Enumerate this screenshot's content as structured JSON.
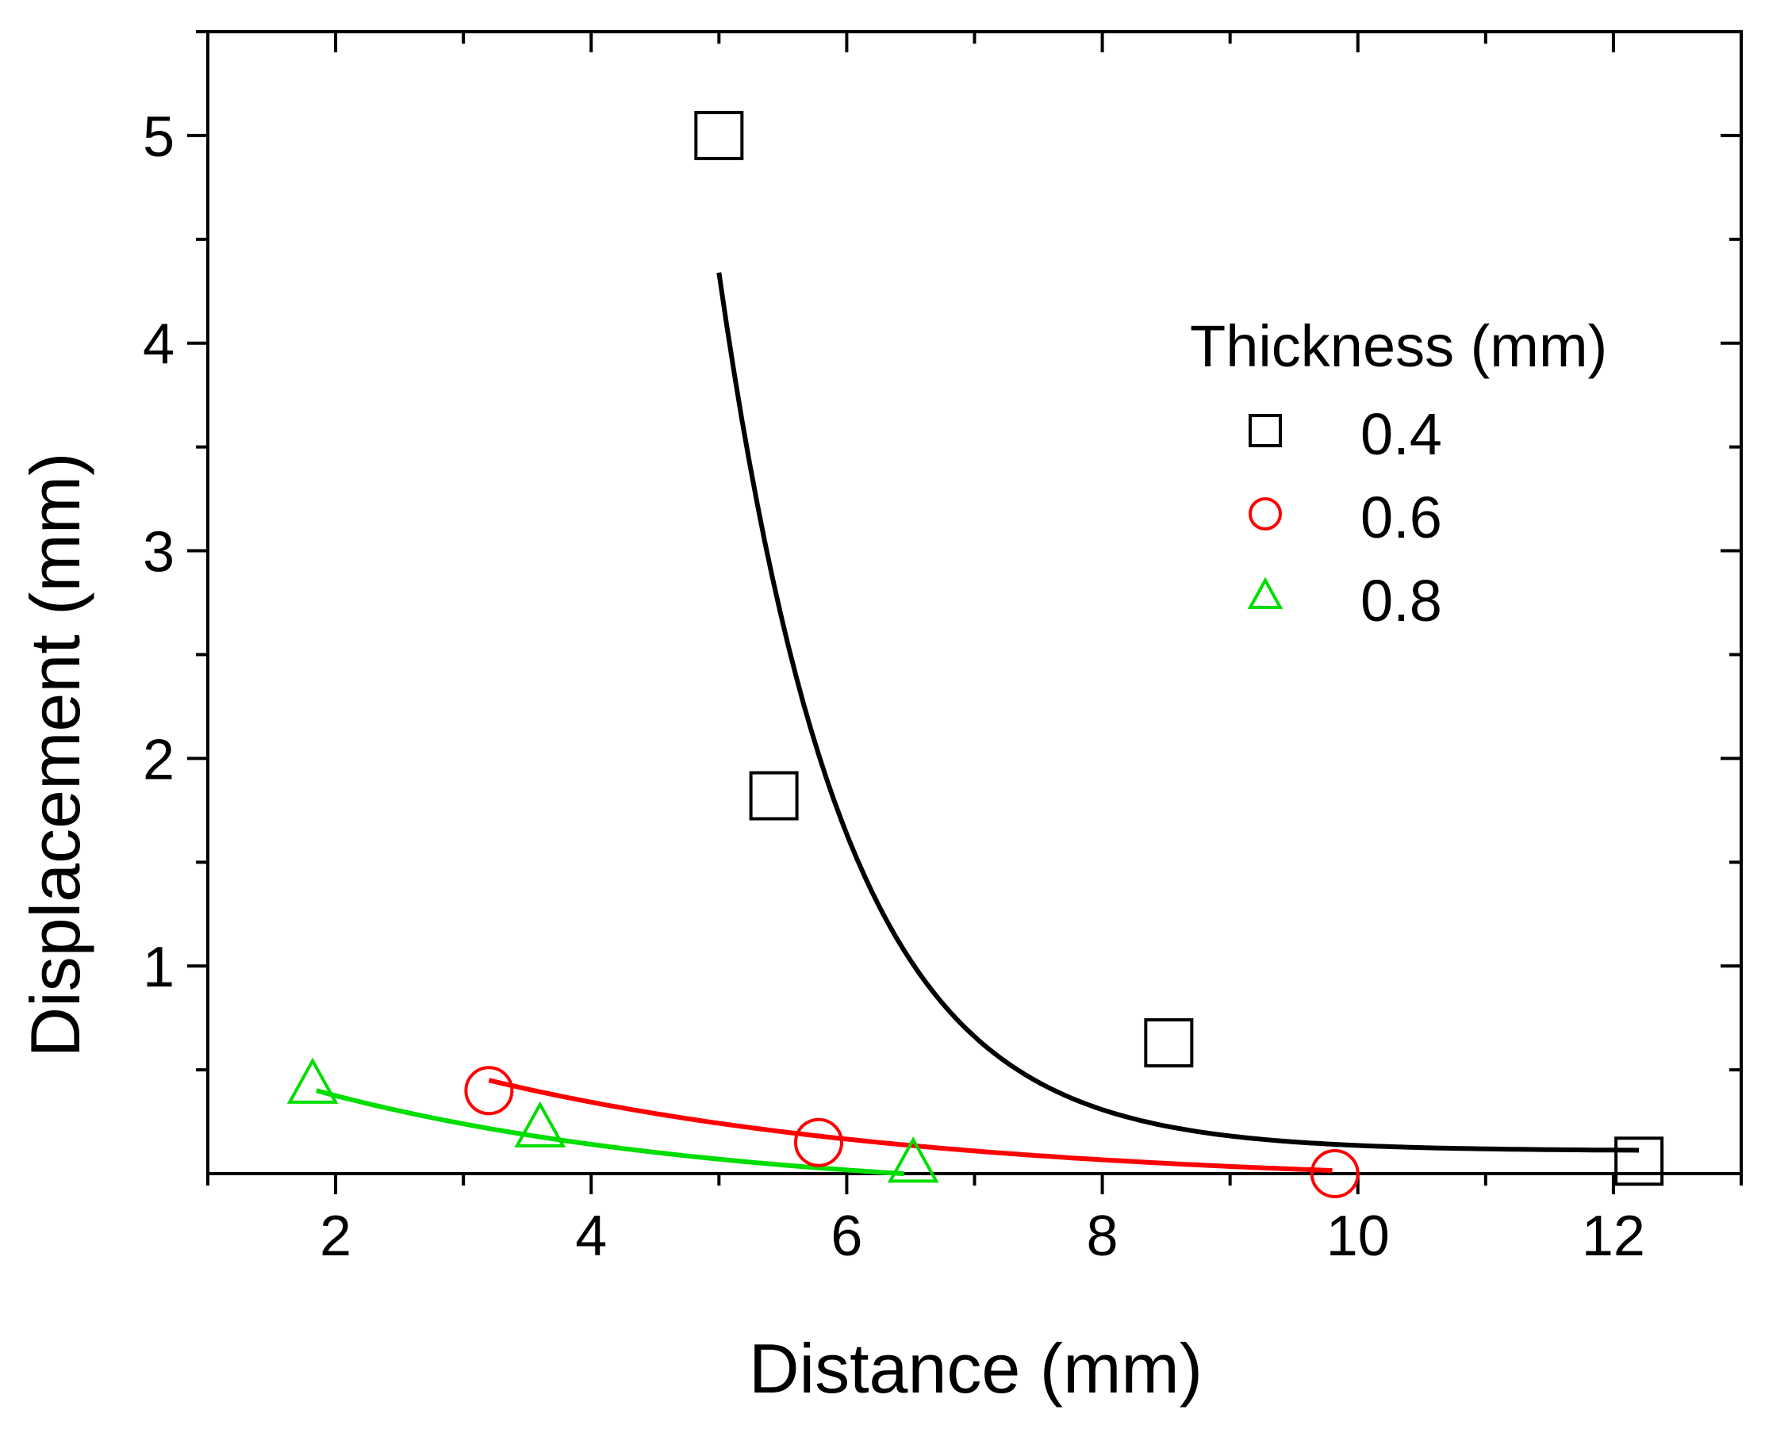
{
  "chart_data": {
    "type": "scatter",
    "title": "",
    "xlabel": "Distance (mm)",
    "ylabel": "Displacement (mm)",
    "xlim": [
      1,
      13
    ],
    "ylim": [
      0,
      5.5
    ],
    "x_ticks": [
      2,
      4,
      6,
      8,
      10,
      12
    ],
    "x_tick_labels": [
      "2",
      "4",
      "6",
      "8",
      "10",
      "12"
    ],
    "y_ticks": [
      1,
      2,
      3,
      4,
      5
    ],
    "y_tick_labels": [
      "1",
      "2",
      "3",
      "4",
      "5"
    ],
    "grid": false,
    "legend": {
      "title": "Thickness (mm)",
      "placement": "top-right"
    },
    "series": [
      {
        "name": "0.4",
        "color": "#000000",
        "marker": "square",
        "points": [
          {
            "x": 5.0,
            "y": 5.0
          },
          {
            "x": 5.43,
            "y": 1.82
          },
          {
            "x": 8.52,
            "y": 0.63
          },
          {
            "x": 12.2,
            "y": 0.06
          }
        ],
        "fit": {
          "x_start": 5.0,
          "x_end": 12.2,
          "a": 4.23,
          "k": 1.02,
          "c": 0.11
        }
      },
      {
        "name": "0.6",
        "color": "#ff0000",
        "marker": "circle",
        "points": [
          {
            "x": 3.2,
            "y": 0.4
          },
          {
            "x": 5.78,
            "y": 0.15
          },
          {
            "x": 9.82,
            "y": 0.0
          }
        ],
        "fit": {
          "x_start": 3.2,
          "x_end": 9.8,
          "a": 0.51,
          "k": 0.29,
          "c": -0.06
        }
      },
      {
        "name": "0.8",
        "color": "#00dd00",
        "marker": "triangle",
        "points": [
          {
            "x": 1.82,
            "y": 0.42
          },
          {
            "x": 3.6,
            "y": 0.21
          },
          {
            "x": 6.52,
            "y": 0.04
          }
        ],
        "fit": {
          "x_start": 1.85,
          "x_end": 6.45,
          "a": 0.52,
          "k": 0.32,
          "c": -0.12
        }
      }
    ]
  }
}
